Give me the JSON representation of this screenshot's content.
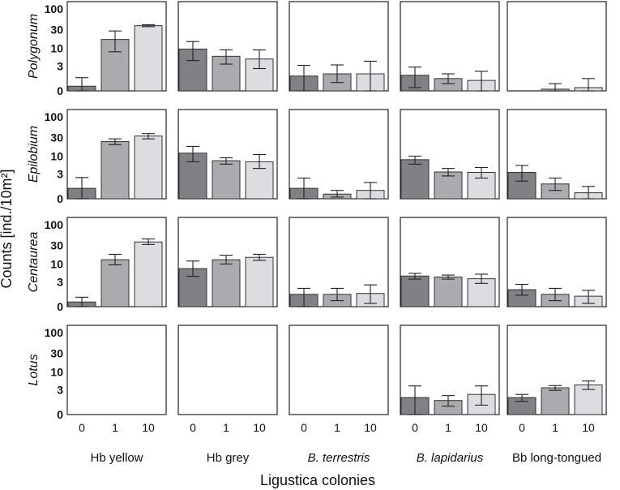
{
  "chart_data": {
    "type": "bar",
    "xlabel": "Ligustica colonies",
    "ylabel": "Counts [ind./10m²]",
    "y_scale": "log(x+1)",
    "ylim": [
      0,
      150
    ],
    "y_ticks": [
      "0",
      "3",
      "10",
      "30",
      "100"
    ],
    "y_tick_values": [
      0,
      3,
      10,
      30,
      100
    ],
    "categories": [
      "0",
      "1",
      "10"
    ],
    "bar_colors": [
      "#7f8185",
      "#a9abae",
      "#dcdde0"
    ],
    "grid": false,
    "columns": [
      {
        "label": "Hb yellow",
        "italic": false
      },
      {
        "label": "Hb grey",
        "italic": false
      },
      {
        "label": "B. terrestris",
        "italic": true
      },
      {
        "label": "B. lapidarius",
        "italic": true
      },
      {
        "label": "Bb long-tongued",
        "italic": false
      }
    ],
    "rows": [
      {
        "label": "Polygonum",
        "panels": [
          {
            "values": [
              0.3,
              17,
              38
            ],
            "lower": [
              0,
              8,
              36
            ],
            "upper": [
              1.1,
              28,
              40
            ]
          },
          {
            "values": [
              9.5,
              6,
              5
            ],
            "lower": [
              4.5,
              3.5,
              2.5
            ],
            "upper": [
              15,
              9,
              9
            ]
          },
          {
            "values": [
              1.3,
              1.6,
              1.6
            ],
            "lower": [
              0,
              0.6,
              0
            ],
            "upper": [
              3.2,
              3.3,
              4.3
            ]
          },
          {
            "values": [
              1.4,
              1,
              0.8
            ],
            "lower": [
              0.2,
              0.5,
              0
            ],
            "upper": [
              2.8,
              1.6,
              2
            ]
          },
          {
            "values": [
              0,
              0.1,
              0.2
            ],
            "lower": [
              0,
              0,
              0
            ],
            "upper": [
              0,
              0.5,
              1
            ]
          }
        ]
      },
      {
        "label": "Epilobium",
        "panels": [
          {
            "values": [
              0.8,
              24,
              33
            ],
            "lower": [
              0,
              20,
              28
            ],
            "upper": [
              2.3,
              28,
              38
            ]
          },
          {
            "values": [
              12,
              7.5,
              7
            ],
            "lower": [
              7,
              6,
              4.5
            ],
            "upper": [
              18,
              9,
              11
            ]
          },
          {
            "values": [
              0.8,
              0.3,
              0.6
            ],
            "lower": [
              0,
              0.1,
              0
            ],
            "upper": [
              2.2,
              0.6,
              1.5
            ]
          },
          {
            "values": [
              8,
              3.5,
              3.4
            ],
            "lower": [
              6,
              2.6,
              2.2
            ],
            "upper": [
              10,
              4.5,
              4.8
            ]
          },
          {
            "values": [
              3.4,
              1.3,
              0.4
            ],
            "lower": [
              1.7,
              0.6,
              0
            ],
            "upper": [
              5.5,
              2.2,
              1
            ]
          }
        ]
      },
      {
        "label": "Centaurea",
        "panels": [
          {
            "values": [
              0.3,
              13,
              37
            ],
            "lower": [
              0,
              9.5,
              32
            ],
            "upper": [
              0.7,
              18,
              44
            ]
          },
          {
            "values": [
              7.5,
              13,
              15
            ],
            "lower": [
              4.5,
              10,
              12.5
            ],
            "upper": [
              12,
              17,
              18
            ]
          },
          {
            "values": [
              1,
              1,
              1.1
            ],
            "lower": [
              0,
              0.4,
              0.2
            ],
            "upper": [
              1.8,
              1.8,
              2.4
            ]
          },
          {
            "values": [
              4.6,
              4.3,
              3.8
            ],
            "lower": [
              3.7,
              3.7,
              2.7
            ],
            "upper": [
              5.5,
              4.9,
              5.2
            ]
          },
          {
            "values": [
              1.6,
              1,
              0.8
            ],
            "lower": [
              0.9,
              0.4,
              0.2
            ],
            "upper": [
              2.5,
              1.8,
              1.5
            ]
          }
        ]
      },
      {
        "label": "Lotus",
        "panels": [
          {
            "values": [
              0,
              0,
              0
            ],
            "lower": [
              0,
              0,
              0
            ],
            "upper": [
              0,
              0,
              0
            ]
          },
          {
            "values": [
              0,
              0,
              0
            ],
            "lower": [
              0,
              0,
              0
            ],
            "upper": [
              0,
              0,
              0
            ]
          },
          {
            "values": [
              0,
              0,
              0
            ],
            "lower": [
              0,
              0,
              0
            ],
            "upper": [
              0,
              0,
              0
            ]
          },
          {
            "values": [
              1.6,
              1.2,
              2.1
            ],
            "lower": [
              0,
              0.6,
              0.7
            ],
            "upper": [
              4,
              1.9,
              4
            ]
          },
          {
            "values": [
              1.6,
              3.5,
              4.3
            ],
            "lower": [
              1.1,
              2.9,
              3.1
            ],
            "upper": [
              2.1,
              4.1,
              5.6
            ]
          }
        ]
      }
    ]
  }
}
